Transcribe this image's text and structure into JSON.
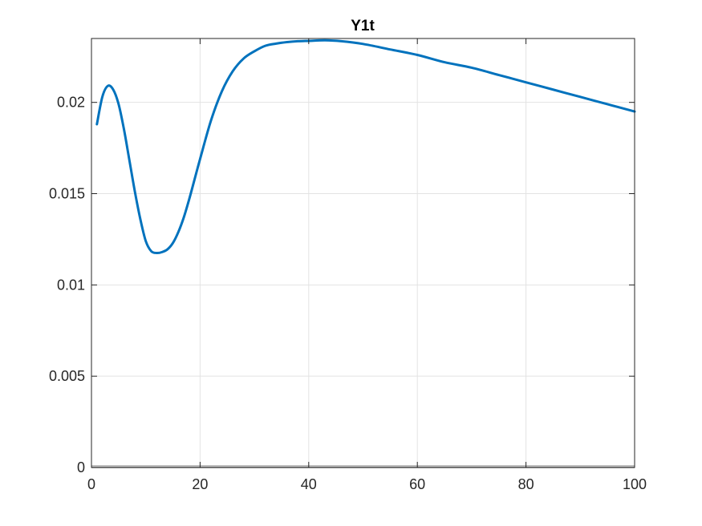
{
  "chart_data": {
    "type": "line",
    "title": "Y1t",
    "xlabel": "",
    "ylabel": "",
    "xlim": [
      0,
      100
    ],
    "ylim": [
      0,
      0.0235
    ],
    "xticks": [
      0,
      20,
      40,
      60,
      80,
      100
    ],
    "xtick_labels": [
      "0",
      "20",
      "40",
      "60",
      "80",
      "100"
    ],
    "yticks": [
      0,
      0.005,
      0.01,
      0.015,
      0.02
    ],
    "ytick_labels": [
      "0",
      "0.005",
      "0.01",
      "0.015",
      "0.02"
    ],
    "grid": true,
    "colors": {
      "series": "#0072BD",
      "zero_line": "#BDBDBD",
      "grid": "#E3E3E3",
      "axes": "#262626"
    },
    "series": [
      {
        "x": [
          1,
          2,
          3,
          4,
          5,
          6,
          7,
          8,
          9,
          10,
          11,
          12,
          13,
          14,
          15,
          16,
          17,
          18,
          19,
          20,
          22,
          24,
          26,
          28,
          30,
          32,
          34,
          36,
          38,
          40,
          43,
          46,
          50,
          55,
          60,
          65,
          70,
          75,
          80,
          85,
          90,
          95,
          100
        ],
        "values": [
          0.0188,
          0.0203,
          0.0209,
          0.0207,
          0.0199,
          0.0185,
          0.0168,
          0.0151,
          0.0136,
          0.0124,
          0.01185,
          0.01175,
          0.0118,
          0.01195,
          0.0123,
          0.0129,
          0.0137,
          0.0147,
          0.0158,
          0.0169,
          0.019,
          0.0206,
          0.0217,
          0.0224,
          0.0228,
          0.0231,
          0.02322,
          0.0233,
          0.02335,
          0.02337,
          0.0234,
          0.02335,
          0.0232,
          0.0229,
          0.0226,
          0.0222,
          0.0219,
          0.0215,
          0.0211,
          0.0207,
          0.0203,
          0.0199,
          0.0195
        ]
      },
      {
        "x": [
          0,
          100
        ],
        "values": [
          0,
          0
        ]
      }
    ]
  }
}
